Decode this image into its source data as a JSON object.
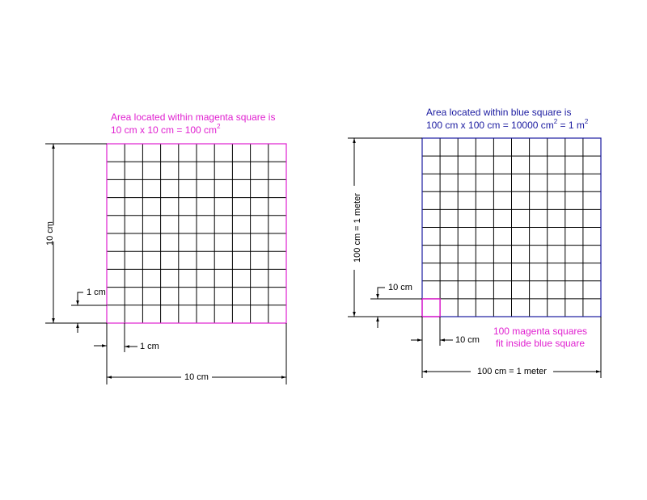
{
  "left_figure": {
    "title_line1": "Area located within magenta square is",
    "title_line2": [
      "10 cm x 10 cm = 100 cm",
      "2"
    ],
    "side_label": "10 cm",
    "small_vertical_label": "1 cm",
    "small_horizontal_label": "1 cm",
    "bottom_label": "10 cm"
  },
  "right_figure": {
    "title_line1": "Area located within blue square is",
    "title_line2": [
      "100 cm x 100 cm = 10000 cm",
      "2",
      " = 1 m",
      "2"
    ],
    "side_label": "100 cm = 1 meter",
    "small_vertical_label": "10 cm",
    "small_horizontal_label": "10 cm",
    "note_line1": "100 magenta squares",
    "note_line2": "fit inside blue square",
    "bottom_label": "100 cm = 1 meter"
  }
}
